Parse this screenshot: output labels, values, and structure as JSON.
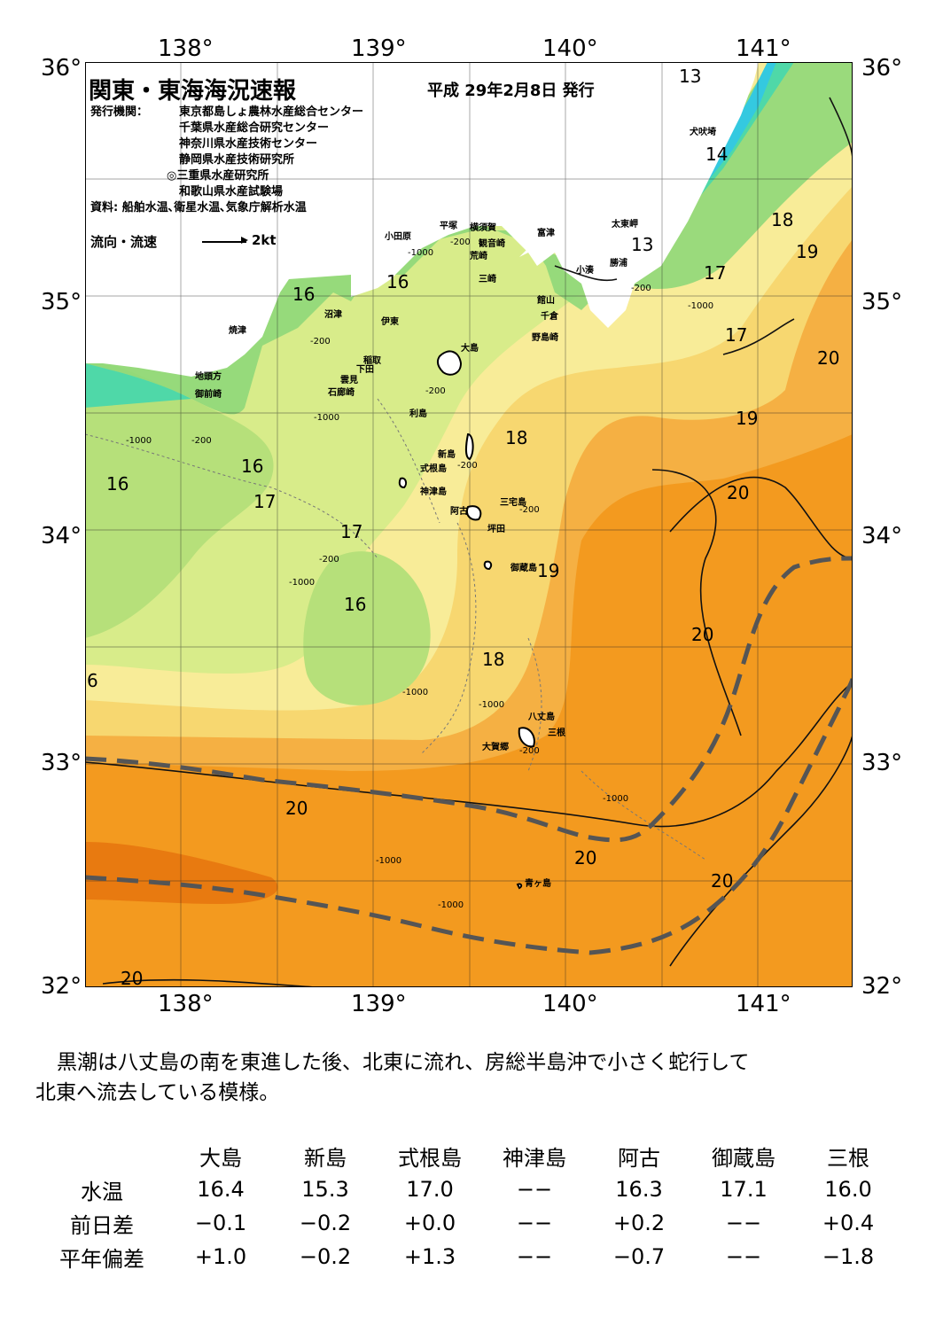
{
  "header": {
    "title": "関東・東海海況速報",
    "date": "平成 29年2月8日 発行",
    "issuer_label": "発行機関：",
    "issuers": [
      "東京都島しょ農林水産総合センター",
      "千葉県水産総合研究センター",
      "神奈川県水産技術センター",
      "静岡県水産技術研究所",
      "◎三重県水産研究所",
      "和歌山県水産試験場"
    ],
    "source": "資料: 船舶水温､衛星水温､気象庁解析水温",
    "legend_flow": "流向・流速",
    "legend_speed": "2kt"
  },
  "axes": {
    "lon_labels": [
      "138°",
      "139°",
      "140°",
      "141°"
    ],
    "lat_labels": [
      "36°",
      "35°",
      "34°",
      "33°",
      "32°"
    ]
  },
  "places": [
    "犬吠埼",
    "太東岬",
    "勝浦",
    "小湊",
    "富津",
    "館山",
    "千倉",
    "野島崎",
    "横須賀",
    "観音崎",
    "平塚",
    "荒崎",
    "三崎",
    "小田原",
    "沼津",
    "伊東",
    "稲取",
    "下田",
    "雲見",
    "石廊崎",
    "焼津",
    "地頭方",
    "御前崎",
    "大島",
    "利島",
    "新島",
    "式根島",
    "神津島",
    "三宅島",
    "阿古",
    "坪田",
    "御蔵島",
    "八丈島",
    "三根",
    "大賀郷",
    "青ヶ島"
  ],
  "isotherm_labels": [
    "13",
    "14",
    "13",
    "18",
    "19",
    "17",
    "17",
    "20",
    "16",
    "16",
    "18",
    "19",
    "16",
    "16",
    "17",
    "17",
    "16",
    "19",
    "20",
    "20",
    "18",
    "6",
    "20",
    "20",
    "20",
    "20"
  ],
  "depth_labels": [
    "-200",
    "-1000",
    "-200",
    "-1000",
    "-200",
    "-200",
    "-1000",
    "-200",
    "-200",
    "-1000",
    "-200",
    "-1000",
    "-1000",
    "-1000",
    "-1000",
    "-1000",
    "-200",
    "-1000",
    "-200"
  ],
  "summary": {
    "line1": "黒潮は八丈島の南を東進した後、北東に流れ、房総半島沖で小さく蛇行して",
    "line2": "北東へ流去している模様。"
  },
  "table": {
    "columns": [
      "大島",
      "新島",
      "式根島",
      "神津島",
      "阿古",
      "御蔵島",
      "三根"
    ],
    "rows": [
      {
        "label": "水温",
        "values": [
          "16.4",
          "15.3",
          "17.0",
          "−−",
          "16.3",
          "17.1",
          "16.0"
        ]
      },
      {
        "label": "前日差",
        "values": [
          "−0.1",
          "−0.2",
          "+0.0",
          "−−",
          "+0.2",
          "−−",
          "+0.4"
        ]
      },
      {
        "label": "平年偏差",
        "values": [
          "+1.0",
          "−0.2",
          "+1.3",
          "−−",
          "−0.7",
          "−−",
          "−1.8"
        ]
      }
    ]
  },
  "colors": {
    "warm_dark": "#e87a10",
    "warm": "#f39a1f",
    "orange": "#f5b043",
    "yellow": "#f7d770",
    "pale_yellow": "#f8ec98",
    "yellow_green": "#d8ec8a",
    "light_green": "#b6e07a",
    "green": "#8fd879",
    "aqua": "#4fd8a8",
    "cyan": "#34c9e0",
    "kuroshio_axis": "#555555"
  }
}
